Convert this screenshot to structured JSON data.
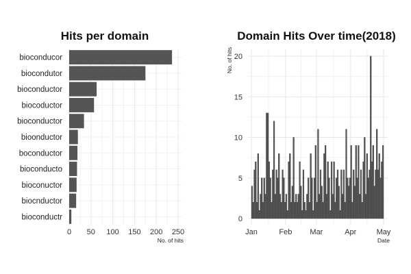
{
  "chart_data": [
    {
      "type": "bar",
      "orientation": "horizontal",
      "title": "Hits per domain",
      "xlabel": "No. of hits",
      "ylabel": "",
      "xlim": [
        0,
        260
      ],
      "xticks": [
        "0",
        "50",
        "100",
        "150",
        "200",
        "250"
      ],
      "categories": [
        "bioconducor",
        "biocondutor",
        "bioconductor",
        "biocoductor",
        "bioconductor",
        "bioonductor",
        "boconductor",
        "bioconducto",
        "bioconuctor",
        "biocnductor",
        "bioconductr"
      ],
      "values": [
        236,
        175,
        63,
        57,
        34,
        20,
        19,
        18,
        17,
        16,
        5
      ],
      "grid": true,
      "color": "#555555"
    },
    {
      "type": "bar",
      "title": "Domain Hits Over time(2018)",
      "xlabel": "Date",
      "ylabel": "No. of hits",
      "ylim": [
        0,
        21
      ],
      "yticks": [
        "0",
        "5",
        "10",
        "15",
        "20"
      ],
      "xticks": [
        "Jan",
        "Feb",
        "Mar",
        "Apr",
        "May"
      ],
      "x_start": "2018-01-01",
      "x_end": "2018-05-01",
      "values": [
        4,
        2,
        6,
        7,
        2,
        8,
        1,
        3,
        5,
        2,
        5,
        3,
        13,
        13,
        7,
        5,
        2,
        6,
        12,
        3,
        6,
        5,
        8,
        3,
        2,
        6,
        5,
        2,
        3,
        1,
        7,
        8,
        2,
        4,
        10,
        2,
        3,
        2,
        3,
        7,
        4,
        1,
        6,
        2,
        1,
        3,
        5,
        2,
        8,
        5,
        1,
        5,
        9,
        2,
        11,
        3,
        6,
        4,
        2,
        8,
        9,
        3,
        7,
        5,
        1,
        7,
        3,
        7,
        2,
        5,
        6,
        4,
        1,
        6,
        3,
        6,
        2,
        11,
        5,
        4,
        5,
        9,
        2,
        6,
        4,
        9,
        5,
        9,
        3,
        6,
        2,
        7,
        10,
        3,
        8,
        5,
        6,
        20,
        7,
        9,
        4,
        6,
        11,
        6,
        8,
        5,
        7,
        9
      ],
      "grid": true,
      "color": "#555555"
    }
  ]
}
